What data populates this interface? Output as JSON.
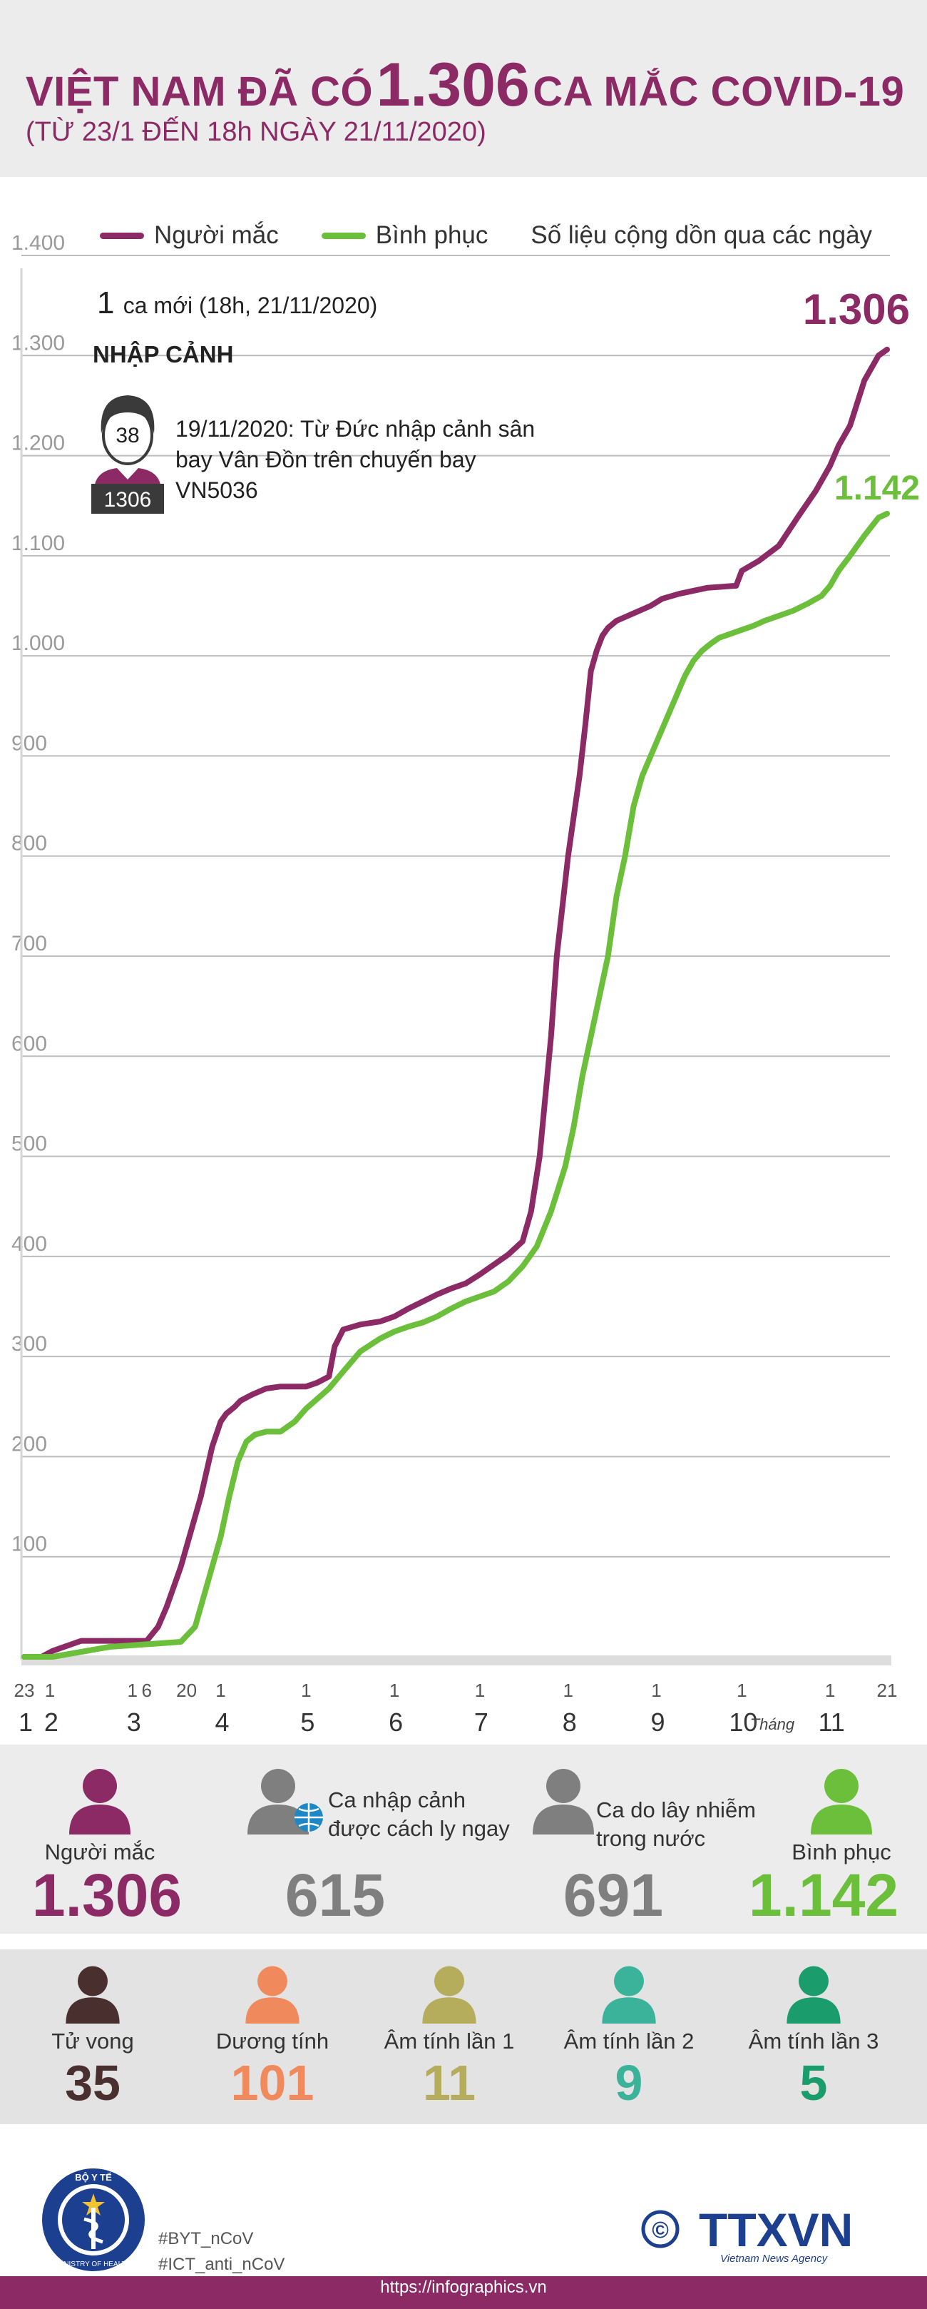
{
  "header": {
    "title_prefix": "VIỆT NAM ĐÃ CÓ",
    "title_number": "1.306",
    "title_suffix": "CA MẮC COVID-19",
    "subtitle": "(TỪ 23/1 ĐẾN 18h NGÀY 21/11/2020)"
  },
  "legend": {
    "infected": "Người mắc",
    "recovered": "Bình phục",
    "note": "Số liệu cộng dồn qua các ngày"
  },
  "annotation": {
    "new_count": "1",
    "new_text": "ca mới (18h, 21/11/2020)",
    "heading": "NHẬP CẢNH",
    "patient_age": "38",
    "patient_id": "1306",
    "detail": "19/11/2020: Từ Đức nhập cảnh sân bay Vân Đồn trên chuyến bay VN5036"
  },
  "colors": {
    "infected": "#8c2a66",
    "recovered": "#6cbf3a",
    "grid": "#bdbdbd",
    "axis_text": "#9a9a9a"
  },
  "chart_data": {
    "type": "line",
    "ylim": [
      0,
      1400
    ],
    "y_ticks": [
      "1.400",
      "1.300",
      "1.200",
      "1.100",
      "1.000",
      "900",
      "800",
      "700",
      "600",
      "500",
      "400",
      "300",
      "200",
      "100"
    ],
    "y_tick_values": [
      1400,
      1300,
      1200,
      1100,
      1000,
      900,
      800,
      700,
      600,
      500,
      400,
      300,
      200,
      100
    ],
    "xlim": [
      0,
      303
    ],
    "day_ticks": [
      {
        "label": "23",
        "x": 0
      },
      {
        "label": "1",
        "x": 9
      },
      {
        "label": "1",
        "x": 38
      },
      {
        "label": "6",
        "x": 43
      },
      {
        "label": "20",
        "x": 57
      },
      {
        "label": "1",
        "x": 69
      },
      {
        "label": "1",
        "x": 99
      },
      {
        "label": "1",
        "x": 130
      },
      {
        "label": "1",
        "x": 160
      },
      {
        "label": "1",
        "x": 191
      },
      {
        "label": "1",
        "x": 222
      },
      {
        "label": "1",
        "x": 252
      },
      {
        "label": "1",
        "x": 283
      },
      {
        "label": "21",
        "x": 303
      }
    ],
    "month_ticks": [
      {
        "label": "1",
        "x": 0
      },
      {
        "label": "2",
        "x": 9
      },
      {
        "label": "3",
        "x": 38
      },
      {
        "label": "4",
        "x": 69
      },
      {
        "label": "5",
        "x": 99
      },
      {
        "label": "6",
        "x": 130
      },
      {
        "label": "7",
        "x": 160
      },
      {
        "label": "8",
        "x": 191
      },
      {
        "label": "9",
        "x": 222
      },
      {
        "label": "10",
        "x": 252
      },
      {
        "label": "11",
        "x": 283
      }
    ],
    "month_axis_label": "Tháng",
    "series": [
      {
        "name": "Người mắc",
        "color": "#8c2a66",
        "end_label": "1.306",
        "x": [
          0,
          6,
          10,
          20,
          30,
          38,
          43,
          47,
          50,
          55,
          58,
          62,
          66,
          69,
          71,
          74,
          76,
          80,
          85,
          90,
          95,
          99,
          103,
          107,
          109,
          112,
          118,
          125,
          130,
          135,
          140,
          145,
          150,
          155,
          160,
          165,
          170,
          175,
          178,
          181,
          183,
          185,
          187,
          189,
          191,
          193,
          195,
          197,
          199,
          201,
          203,
          205,
          208,
          212,
          216,
          220,
          224,
          230,
          240,
          250,
          252,
          258,
          265,
          272,
          278,
          283,
          286,
          290,
          295,
          300,
          303
        ],
        "y": [
          0,
          0,
          6,
          16,
          16,
          16,
          16,
          30,
          50,
          90,
          120,
          160,
          210,
          235,
          243,
          250,
          256,
          262,
          268,
          270,
          270,
          270,
          274,
          280,
          310,
          327,
          332,
          335,
          340,
          348,
          355,
          362,
          368,
          373,
          382,
          392,
          402,
          415,
          445,
          500,
          560,
          620,
          700,
          750,
          800,
          840,
          880,
          930,
          985,
          1005,
          1020,
          1028,
          1035,
          1040,
          1045,
          1050,
          1057,
          1062,
          1068,
          1070,
          1085,
          1095,
          1110,
          1140,
          1165,
          1190,
          1210,
          1230,
          1275,
          1300,
          1306
        ]
      },
      {
        "name": "Bình phục",
        "color": "#6cbf3a",
        "end_label": "1.142",
        "x": [
          0,
          10,
          20,
          30,
          40,
          55,
          60,
          63,
          66,
          69,
          72,
          75,
          78,
          81,
          85,
          90,
          95,
          99,
          103,
          107,
          112,
          118,
          125,
          130,
          135,
          140,
          145,
          150,
          155,
          160,
          165,
          170,
          175,
          180,
          185,
          190,
          193,
          196,
          199,
          202,
          205,
          208,
          211,
          214,
          217,
          220,
          223,
          226,
          229,
          232,
          235,
          238,
          241,
          244,
          248,
          252,
          256,
          260,
          265,
          270,
          275,
          280,
          283,
          286,
          290,
          295,
          300,
          303
        ],
        "y": [
          0,
          0,
          5,
          10,
          12,
          15,
          30,
          60,
          90,
          120,
          160,
          195,
          215,
          222,
          225,
          225,
          235,
          248,
          258,
          268,
          285,
          305,
          318,
          325,
          330,
          334,
          340,
          348,
          355,
          360,
          365,
          375,
          390,
          410,
          445,
          490,
          530,
          580,
          620,
          660,
          700,
          760,
          800,
          850,
          880,
          900,
          920,
          940,
          960,
          980,
          995,
          1005,
          1012,
          1018,
          1022,
          1026,
          1030,
          1035,
          1040,
          1045,
          1052,
          1060,
          1070,
          1085,
          1100,
          1120,
          1138,
          1142
        ]
      }
    ]
  },
  "stats_primary": [
    {
      "label": "Người mắc",
      "value": "1.306",
      "color": "#8c2a66",
      "icon": "person-icon"
    },
    {
      "label": "Ca nhập cảnh được cách ly ngay",
      "value": "615",
      "color": "#7f7f7f",
      "icon": "person-globe-icon"
    },
    {
      "label": "Ca do lây nhiễm trong nước",
      "value": "691",
      "color": "#7f7f7f",
      "icon": "person-icon"
    },
    {
      "label": "Bình phục",
      "value": "1.142",
      "color": "#6cbf3a",
      "icon": "person-icon"
    }
  ],
  "stats_secondary": [
    {
      "label": "Tử vong",
      "value": "35",
      "color": "#4a2f2f"
    },
    {
      "label": "Dương tính",
      "value": "101",
      "color": "#f08a5d"
    },
    {
      "label": "Âm tính lần 1",
      "value": "11",
      "color": "#b5ad5c"
    },
    {
      "label": "Âm tính lần 2",
      "value": "9",
      "color": "#3bb39b"
    },
    {
      "label": "Âm tính lần 3",
      "value": "5",
      "color": "#1a9c6d"
    }
  ],
  "footer": {
    "tag1": "#BYT_nCoV",
    "tag2": "#ICT_anti_nCoV",
    "url": "https://infographics.vn",
    "agency": "TTXVN",
    "agency_sub": "Vietnam News Agency",
    "copyright": "©",
    "moh_top": "BỘ Y TẾ",
    "moh_bottom": "MINISTRY OF HEALTH"
  }
}
